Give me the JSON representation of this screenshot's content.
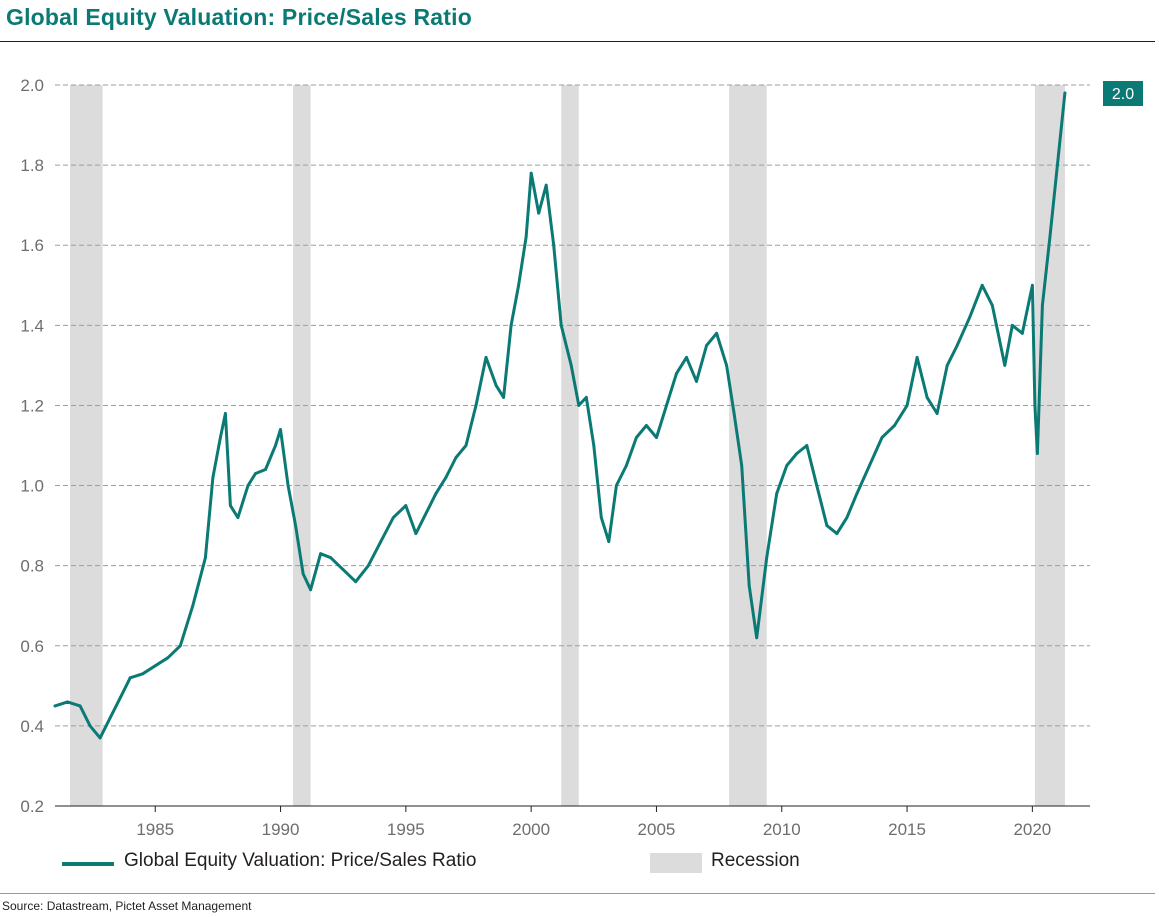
{
  "header": {
    "title": "Global Equity Valuation: Price/Sales Ratio"
  },
  "footer": {
    "source": "Source: Datastream, Pictet Asset Management"
  },
  "legend": {
    "series_label": "Global Equity Valuation: Price/Sales Ratio",
    "recession_label": "Recession"
  },
  "colors": {
    "series": "#0b7a75",
    "recession": "#dcdcdc",
    "grid": "#9d9d9d",
    "end_label_bg": "#0b7a75"
  },
  "chart_data": {
    "type": "line",
    "title": "Global Equity Valuation: Price/Sales Ratio",
    "xlabel": "",
    "ylabel": "",
    "xlim": [
      1981.0,
      2022.3
    ],
    "ylim": [
      0.2,
      2.0
    ],
    "x_ticks": [
      1985,
      1990,
      1995,
      2000,
      2005,
      2010,
      2015,
      2020
    ],
    "y_ticks": [
      0.2,
      0.4,
      0.6,
      0.8,
      1.0,
      1.2,
      1.4,
      1.6,
      1.8,
      2.0
    ],
    "y_tick_labels": [
      "0.2",
      "0.4",
      "0.6",
      "0.8",
      "1.0",
      "1.2",
      "1.4",
      "1.6",
      "1.8",
      "2.0"
    ],
    "grid": "horizontal dashed",
    "legend_position": "bottom",
    "end_label": "2.0",
    "recessions": [
      [
        1981.6,
        1982.9
      ],
      [
        1990.5,
        1991.2
      ],
      [
        2001.2,
        2001.9
      ],
      [
        2007.9,
        2009.4
      ],
      [
        2020.1,
        2021.3
      ]
    ],
    "series": [
      {
        "name": "Global Equity Valuation: Price/Sales Ratio",
        "x": [
          1981.0,
          1981.5,
          1982.0,
          1982.4,
          1982.8,
          1983.2,
          1983.6,
          1984.0,
          1984.5,
          1985.0,
          1985.5,
          1986.0,
          1986.5,
          1987.0,
          1987.3,
          1987.6,
          1987.8,
          1988.0,
          1988.3,
          1988.7,
          1989.0,
          1989.4,
          1989.8,
          1990.0,
          1990.3,
          1990.6,
          1990.9,
          1991.2,
          1991.6,
          1992.0,
          1992.5,
          1993.0,
          1993.5,
          1994.0,
          1994.5,
          1995.0,
          1995.4,
          1995.8,
          1996.2,
          1996.6,
          1997.0,
          1997.4,
          1997.8,
          1998.2,
          1998.6,
          1998.9,
          1999.2,
          1999.5,
          1999.8,
          2000.0,
          2000.3,
          2000.6,
          2000.9,
          2001.2,
          2001.6,
          2001.9,
          2002.2,
          2002.5,
          2002.8,
          2003.1,
          2003.4,
          2003.8,
          2004.2,
          2004.6,
          2005.0,
          2005.4,
          2005.8,
          2006.2,
          2006.6,
          2007.0,
          2007.4,
          2007.8,
          2008.1,
          2008.4,
          2008.7,
          2009.0,
          2009.2,
          2009.4,
          2009.8,
          2010.2,
          2010.6,
          2011.0,
          2011.4,
          2011.8,
          2012.2,
          2012.6,
          2013.0,
          2013.5,
          2014.0,
          2014.5,
          2015.0,
          2015.4,
          2015.8,
          2016.2,
          2016.6,
          2017.0,
          2017.5,
          2018.0,
          2018.4,
          2018.9,
          2019.2,
          2019.6,
          2020.0,
          2020.1,
          2020.2,
          2020.4,
          2020.7,
          2021.0,
          2021.3
        ],
        "values": [
          0.45,
          0.46,
          0.45,
          0.4,
          0.37,
          0.42,
          0.47,
          0.52,
          0.53,
          0.55,
          0.57,
          0.6,
          0.7,
          0.82,
          1.02,
          1.12,
          1.18,
          0.95,
          0.92,
          1.0,
          1.03,
          1.04,
          1.1,
          1.14,
          1.0,
          0.9,
          0.78,
          0.74,
          0.83,
          0.82,
          0.79,
          0.76,
          0.8,
          0.86,
          0.92,
          0.95,
          0.88,
          0.93,
          0.98,
          1.02,
          1.07,
          1.1,
          1.2,
          1.32,
          1.25,
          1.22,
          1.4,
          1.5,
          1.62,
          1.78,
          1.68,
          1.75,
          1.6,
          1.4,
          1.3,
          1.2,
          1.22,
          1.1,
          0.92,
          0.86,
          1.0,
          1.05,
          1.12,
          1.15,
          1.12,
          1.2,
          1.28,
          1.32,
          1.26,
          1.35,
          1.38,
          1.3,
          1.18,
          1.05,
          0.75,
          0.62,
          0.72,
          0.82,
          0.98,
          1.05,
          1.08,
          1.1,
          1.0,
          0.9,
          0.88,
          0.92,
          0.98,
          1.05,
          1.12,
          1.15,
          1.2,
          1.32,
          1.22,
          1.18,
          1.3,
          1.35,
          1.42,
          1.5,
          1.45,
          1.3,
          1.4,
          1.38,
          1.5,
          1.2,
          1.08,
          1.45,
          1.62,
          1.8,
          1.98
        ]
      }
    ]
  }
}
